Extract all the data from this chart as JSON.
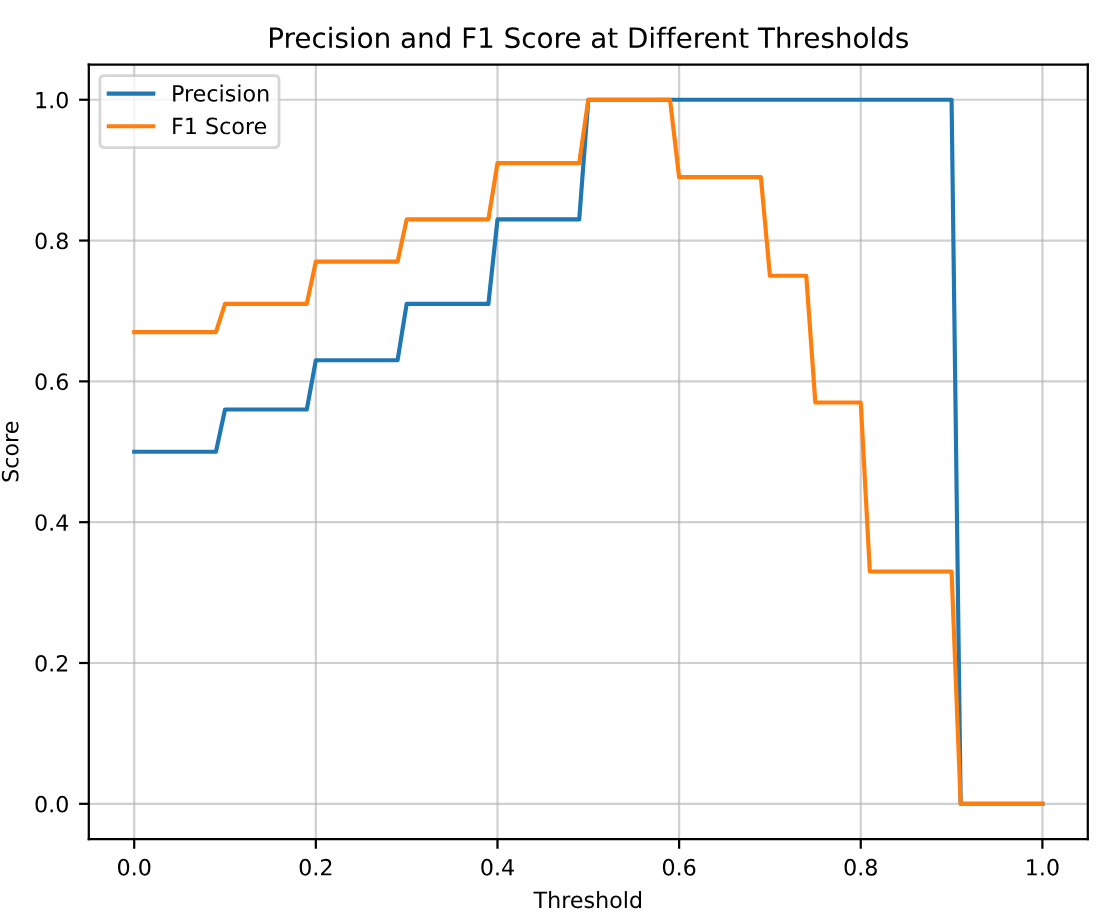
{
  "chart_data": {
    "type": "line",
    "title": "Precision and F1 Score at Different Thresholds",
    "xlabel": "Threshold",
    "ylabel": "Score",
    "x": [
      0,
      0.09,
      0.1,
      0.19,
      0.2,
      0.29,
      0.3,
      0.39,
      0.4,
      0.49,
      0.5,
      0.59,
      0.6,
      0.69,
      0.7,
      0.74,
      0.75,
      0.8,
      0.81,
      0.9,
      0.91,
      1.0
    ],
    "series": [
      {
        "name": "Precision",
        "color": "#1f77b4",
        "values": [
          0.5,
          0.5,
          0.56,
          0.56,
          0.63,
          0.63,
          0.71,
          0.71,
          0.83,
          0.83,
          1,
          1,
          1,
          1,
          1,
          1,
          1,
          1,
          1,
          1,
          0,
          0
        ]
      },
      {
        "name": "F1 Score",
        "color": "#ff7f0e",
        "values": [
          0.67,
          0.67,
          0.71,
          0.71,
          0.77,
          0.77,
          0.83,
          0.83,
          0.91,
          0.91,
          1,
          1,
          0.89,
          0.89,
          0.75,
          0.75,
          0.57,
          0.57,
          0.33,
          0.33,
          0,
          0
        ]
      }
    ],
    "xlim": [
      -0.05,
      1.05
    ],
    "ylim": [
      -0.05,
      1.05
    ],
    "xticks": [
      {
        "value": 0,
        "label": "0.0"
      },
      0.2,
      0.4,
      0.6,
      0.8,
      {
        "value": 1,
        "label": "1.0"
      }
    ],
    "yticks": [
      {
        "value": 0,
        "label": "0.0"
      },
      0.2,
      0.4,
      0.6,
      0.8,
      {
        "value": 1,
        "label": "1.0"
      }
    ],
    "grid": true,
    "legend": "top left",
    "line_style": "solid",
    "marker": "none"
  }
}
